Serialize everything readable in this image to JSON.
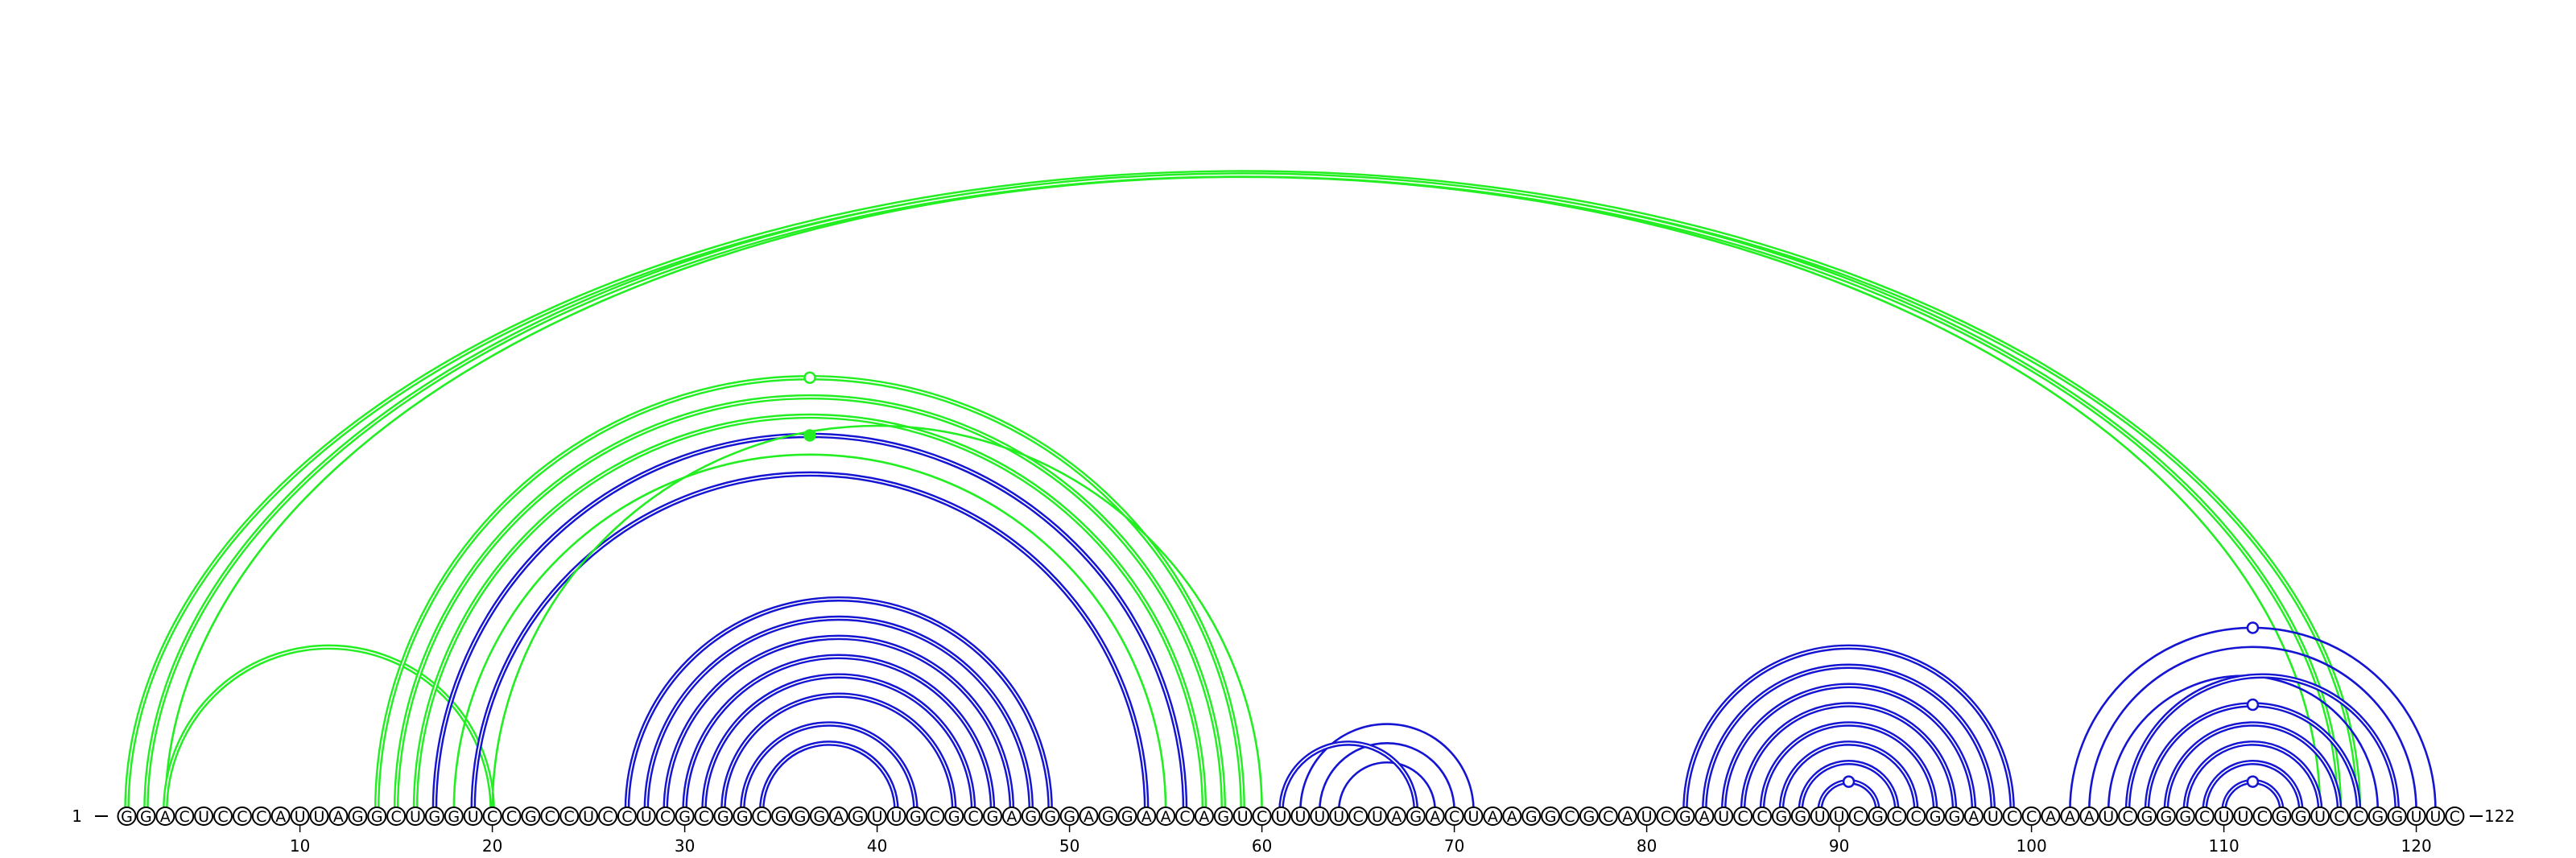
{
  "diagram": {
    "type": "rna-arc-diagram",
    "sequence": "GGACUCCCAUUAGGCUGGUCCGCCUCCUCGCGGCGGGAGUUGCGCGAGGGAGGAACAGUCUUUUCUAGACUAAGGCGCAUCGAUCCGGUUCGCCGGAUCCAAAUCGGGCUUCGGUCCGGUUC",
    "length": 122,
    "start_label": "1",
    "end_label": "122",
    "tick_positions": [
      10,
      20,
      30,
      40,
      50,
      60,
      70,
      80,
      90,
      100,
      110,
      120
    ],
    "colors": {
      "green": "#22ee22",
      "blue": "#1414d2",
      "axis": "#000000"
    },
    "helices": [
      {
        "name": "long-range-helix",
        "color": "green",
        "style": "double",
        "pairs": [
          [
            1,
            117
          ],
          [
            2,
            116
          ]
        ]
      },
      {
        "name": "long-range-pair-3",
        "color": "green",
        "style": "single",
        "pairs": [
          [
            3,
            115
          ]
        ]
      },
      {
        "name": "small-green-arc",
        "color": "green",
        "style": "double",
        "pairs": [
          [
            3,
            20
          ]
        ]
      },
      {
        "name": "green-outer-helix",
        "color": "green",
        "style": "double",
        "pairs": [
          [
            14,
            59
          ],
          [
            15,
            58
          ],
          [
            16,
            57
          ]
        ]
      },
      {
        "name": "green-helix-single",
        "color": "green",
        "style": "single",
        "pairs": [
          [
            18,
            55
          ]
        ]
      },
      {
        "name": "blue-outer-helix",
        "color": "blue",
        "style": "double",
        "pairs": [
          [
            17,
            56
          ],
          [
            19,
            54
          ]
        ]
      },
      {
        "name": "green-pair-20-60",
        "color": "green",
        "style": "single",
        "pairs": [
          [
            20,
            60
          ]
        ]
      },
      {
        "name": "blue-inner-helix",
        "color": "blue",
        "style": "double",
        "pairs": [
          [
            27,
            49
          ],
          [
            28,
            48
          ],
          [
            29,
            47
          ],
          [
            30,
            46
          ],
          [
            31,
            45
          ],
          [
            32,
            44
          ],
          [
            33,
            42
          ],
          [
            34,
            41
          ]
        ]
      },
      {
        "name": "blue-hairpin-60",
        "color": "blue",
        "style": "single",
        "pairs": [
          [
            62,
            71
          ],
          [
            63,
            70
          ],
          [
            64,
            69
          ]
        ]
      },
      {
        "name": "blue-hairpin-60-double",
        "color": "blue",
        "style": "double",
        "pairs": [
          [
            61,
            68
          ]
        ]
      },
      {
        "name": "blue-hairpin-90",
        "color": "blue",
        "style": "double",
        "pairs": [
          [
            82,
            99
          ],
          [
            83,
            98
          ],
          [
            84,
            97
          ],
          [
            85,
            96
          ],
          [
            86,
            95
          ],
          [
            87,
            94
          ],
          [
            88,
            93
          ],
          [
            89,
            92
          ]
        ]
      },
      {
        "name": "blue-hairpin-110",
        "color": "blue",
        "style": "single",
        "pairs": [
          [
            102,
            121
          ],
          [
            103,
            120
          ],
          [
            104,
            118
          ]
        ]
      },
      {
        "name": "blue-hairpin-110-double",
        "color": "blue",
        "style": "double",
        "pairs": [
          [
            105,
            119
          ],
          [
            106,
            117
          ],
          [
            107,
            116
          ],
          [
            108,
            115
          ],
          [
            109,
            114
          ],
          [
            110,
            113
          ]
        ]
      }
    ],
    "markers": [
      {
        "index": 36.5,
        "height_of_pair": [
          14,
          59
        ],
        "color": "green",
        "filled": false
      },
      {
        "index": 36.5,
        "height_of_pair": [
          17,
          56
        ],
        "color": "green",
        "filled": true
      },
      {
        "index": 90.5,
        "height_of_pair": [
          89,
          92
        ],
        "color": "blue",
        "filled": false
      },
      {
        "index": 111.5,
        "height_of_pair": [
          102,
          121
        ],
        "color": "blue",
        "filled": false
      },
      {
        "index": 111.5,
        "height_of_pair": [
          106,
          117
        ],
        "color": "blue",
        "filled": false
      },
      {
        "index": 111.5,
        "height_of_pair": [
          110,
          113
        ],
        "color": "blue",
        "filled": false
      }
    ]
  }
}
